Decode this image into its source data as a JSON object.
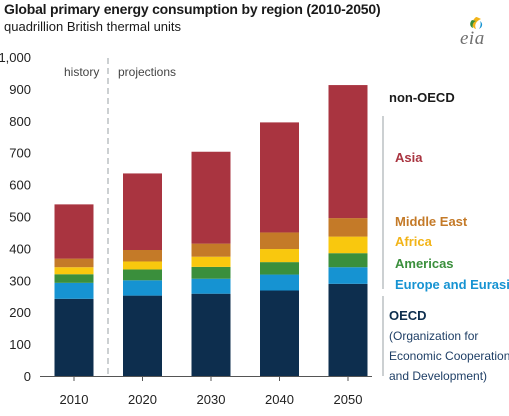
{
  "title": "Global primary energy consumption by region (2010-2050)",
  "subtitle": "quadrillion British thermal units",
  "logo": {
    "text": "eia",
    "icon": "eia-logo-icon"
  },
  "annotations": {
    "history": "history",
    "projections": "projections"
  },
  "chart_data": {
    "type": "bar",
    "stacked": true,
    "categories": [
      "2010",
      "2020",
      "2030",
      "2040",
      "2050"
    ],
    "ylim": [
      0,
      1000
    ],
    "yticks": [
      "0",
      "100",
      "200",
      "300",
      "400",
      "500",
      "600",
      "700",
      "800",
      "900",
      "1,000"
    ],
    "ytick_values": [
      0,
      100,
      200,
      300,
      400,
      500,
      600,
      700,
      800,
      900,
      1000
    ],
    "grid": false,
    "legend_placement": "right",
    "series": [
      {
        "name": "OECD",
        "color": "#0d2e4e",
        "values": [
          242,
          252,
          258,
          268,
          289
        ]
      },
      {
        "name": "Europe and Eurasia",
        "color": "#1693d2",
        "values": [
          50,
          48,
          47,
          50,
          52
        ]
      },
      {
        "name": "Americas",
        "color": "#3a8f3c",
        "values": [
          27,
          34,
          37,
          39,
          44
        ]
      },
      {
        "name": "Africa",
        "color": "#f9c80e",
        "values": [
          22,
          25,
          32,
          41,
          52
        ]
      },
      {
        "name": "Middle East",
        "color": "#c47a28",
        "values": [
          27,
          36,
          41,
          52,
          58
        ]
      },
      {
        "name": "Asia",
        "color": "#a93440",
        "values": [
          170,
          240,
          288,
          345,
          417
        ]
      }
    ],
    "group_labels": {
      "non_oecd": "non-OECD",
      "oecd": "OECD"
    },
    "oecd_note": [
      "(Organization for",
      "Economic Cooperation",
      "and Development)"
    ]
  },
  "colors": {
    "oecd_group": "#0d2e4e",
    "oecd_note": "#1f3f66",
    "bracket": "#9aa0a6",
    "divider": "#9aa0a6"
  }
}
